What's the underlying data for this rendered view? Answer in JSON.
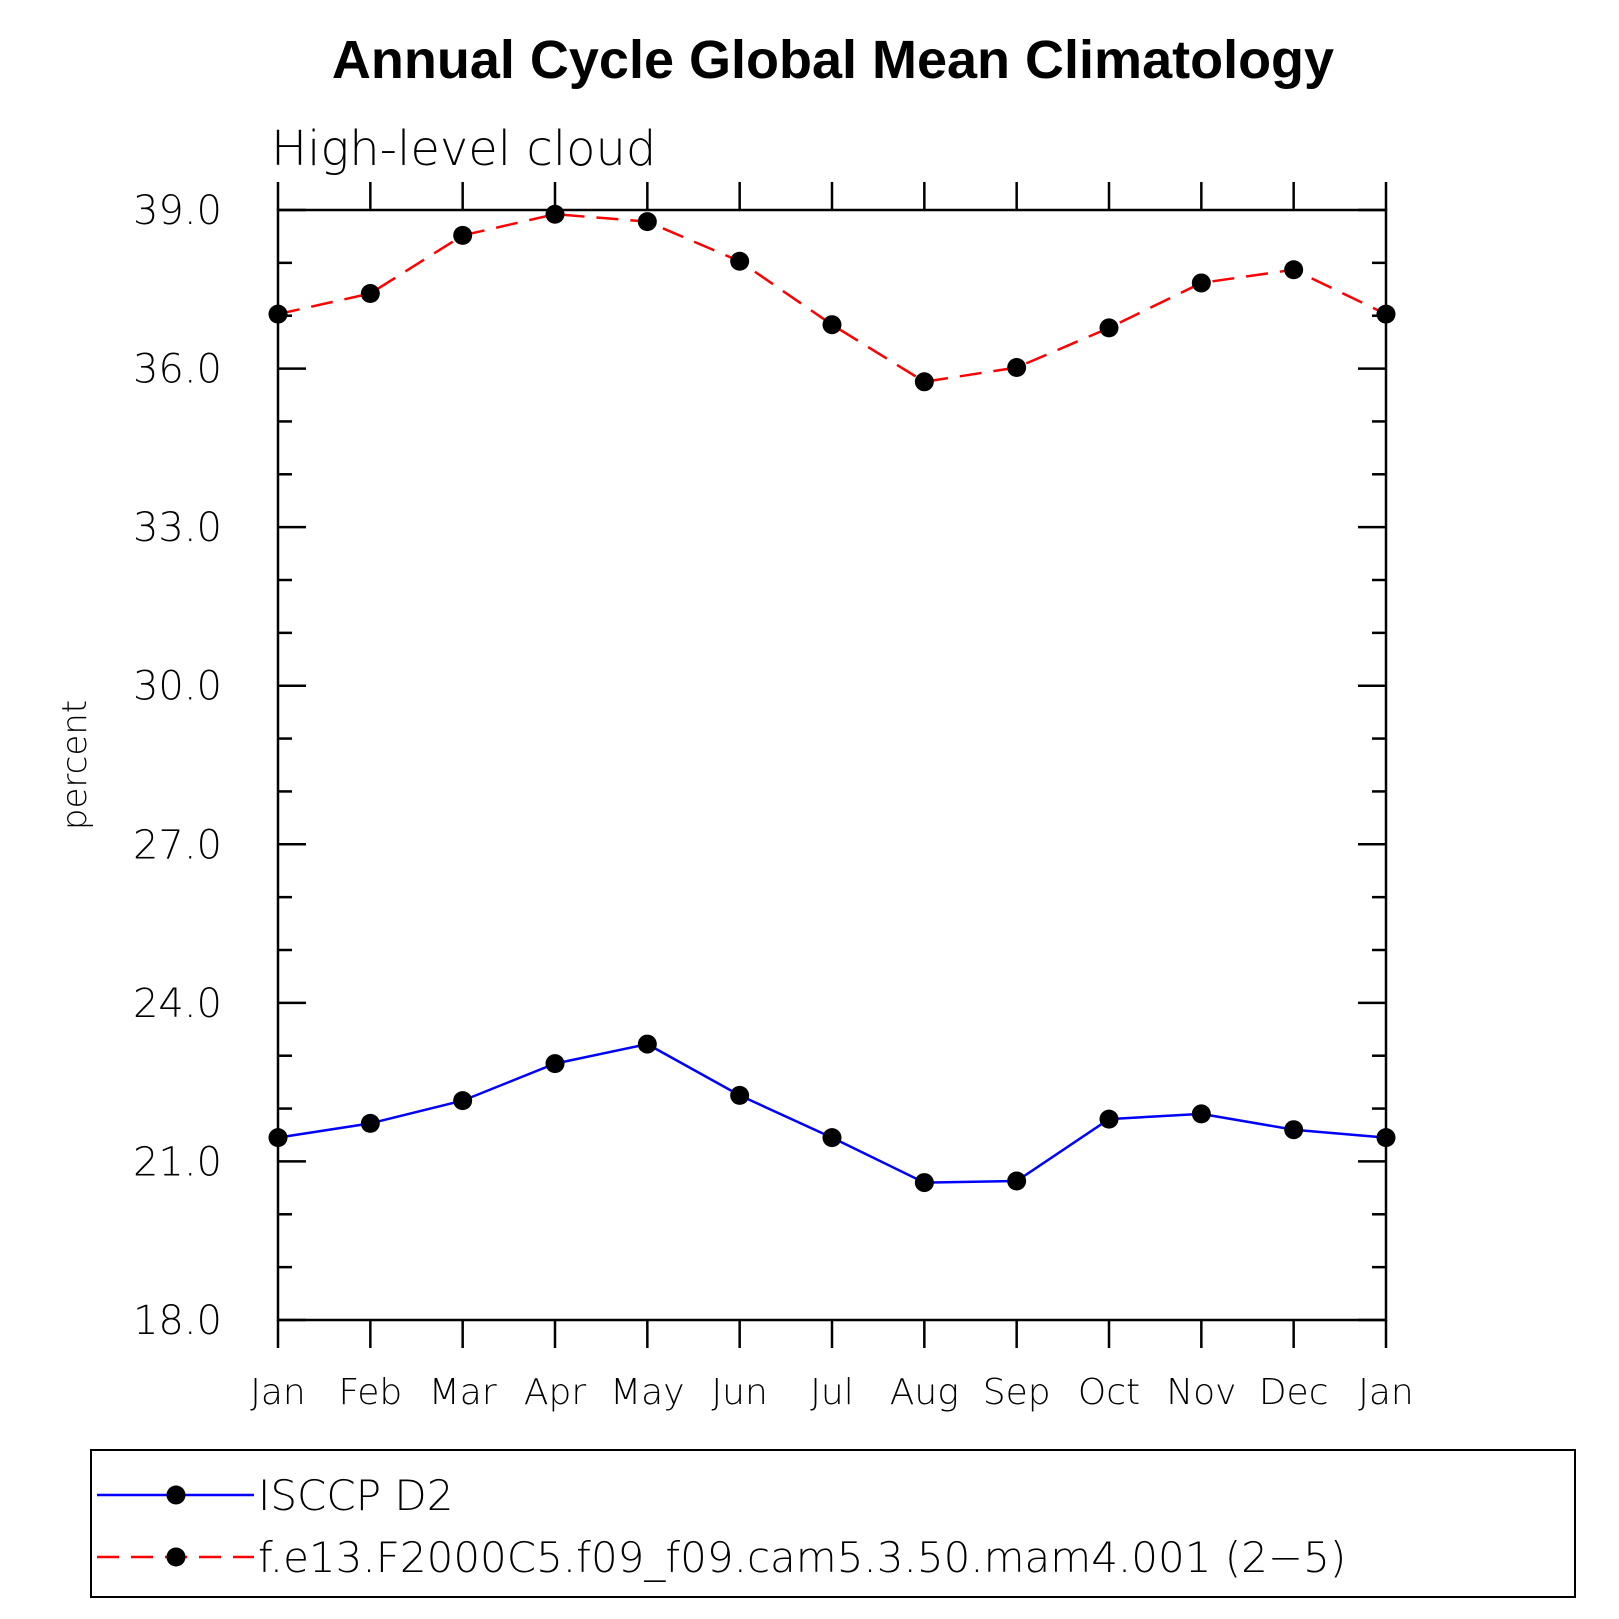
{
  "chart_data": {
    "type": "line",
    "title": "Annual Cycle Global Mean Climatology",
    "subtitle": "High-level cloud",
    "xlabel": "",
    "ylabel": "percent",
    "ylim": [
      18.0,
      39.0
    ],
    "yticks": [
      "18.0",
      "21.0",
      "24.0",
      "27.0",
      "30.0",
      "33.0",
      "36.0",
      "39.0"
    ],
    "categories": [
      "Jan",
      "Feb",
      "Mar",
      "Apr",
      "May",
      "Jun",
      "Jul",
      "Aug",
      "Sep",
      "Oct",
      "Nov",
      "Dec",
      "Jan"
    ],
    "grid": false,
    "legend_position": "bottom",
    "series": [
      {
        "name": "ISCCP D2",
        "color": "#0000ff",
        "dash": "solid",
        "values": [
          21.45,
          21.72,
          22.15,
          22.85,
          23.22,
          22.25,
          21.45,
          20.6,
          20.63,
          21.8,
          21.9,
          21.6,
          21.45
        ]
      },
      {
        "name": "f.e13.F2000C5.f09_f09.cam5.3.50.mam4.001 (2−5)",
        "color": "#ff0000",
        "dash": "dashed",
        "values": [
          37.03,
          37.42,
          38.52,
          38.92,
          38.78,
          38.03,
          36.83,
          35.75,
          36.02,
          36.77,
          37.62,
          37.87,
          37.03
        ]
      }
    ]
  }
}
